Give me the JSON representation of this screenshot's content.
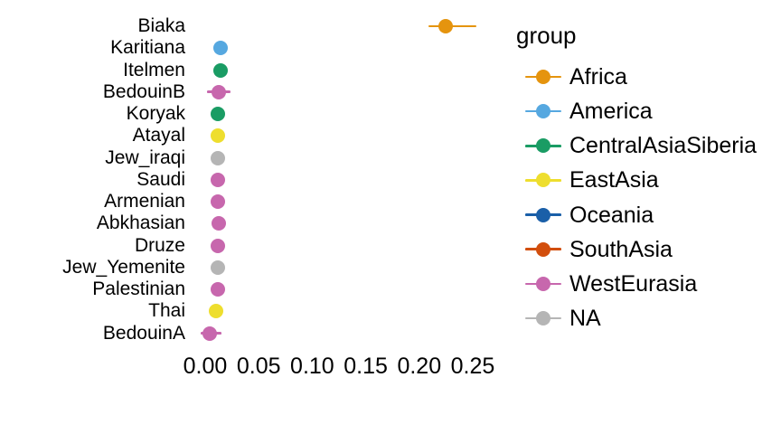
{
  "chart_data": {
    "type": "pointrange",
    "orientation": "horizontal",
    "title": "",
    "xlabel": "",
    "ylabel": "",
    "grid": false,
    "axis_lines": false,
    "xlim": [
      -0.01,
      0.285
    ],
    "x_ticks": [
      0.0,
      0.05,
      0.1,
      0.15,
      0.2,
      0.25
    ],
    "x_tick_labels": [
      "0.00",
      "0.05",
      "0.10",
      "0.15",
      "0.20",
      "0.25"
    ],
    "categories": [
      "Biaka",
      "Karitiana",
      "Itelmen",
      "BedouinB",
      "Koryak",
      "Atayal",
      "Jew_iraqi",
      "Saudi",
      "Armenian",
      "Abkhasian",
      "Druze",
      "Jew_Yemenite",
      "Palestinian",
      "Thai",
      "BedouinA"
    ],
    "points": [
      {
        "label": "Biaka",
        "group": "Africa",
        "value": 0.225,
        "ci_low": 0.209,
        "ci_high": 0.253
      },
      {
        "label": "Karitiana",
        "group": "America",
        "value": 0.014,
        "ci_low": 0.01,
        "ci_high": 0.018
      },
      {
        "label": "Itelmen",
        "group": "CentralAsiaSiberia",
        "value": 0.014,
        "ci_low": 0.01,
        "ci_high": 0.018
      },
      {
        "label": "BedouinB",
        "group": "WestEurasia",
        "value": 0.013,
        "ci_low": 0.002,
        "ci_high": 0.024
      },
      {
        "label": "Koryak",
        "group": "CentralAsiaSiberia",
        "value": 0.012,
        "ci_low": 0.008,
        "ci_high": 0.016
      },
      {
        "label": "Atayal",
        "group": "EastAsia",
        "value": 0.012,
        "ci_low": 0.008,
        "ci_high": 0.016
      },
      {
        "label": "Jew_iraqi",
        "group": "NA",
        "value": 0.012,
        "ci_low": 0.008,
        "ci_high": 0.016
      },
      {
        "label": "Saudi",
        "group": "WestEurasia",
        "value": 0.012,
        "ci_low": 0.008,
        "ci_high": 0.016
      },
      {
        "label": "Armenian",
        "group": "WestEurasia",
        "value": 0.012,
        "ci_low": 0.008,
        "ci_high": 0.016
      },
      {
        "label": "Abkhasian",
        "group": "WestEurasia",
        "value": 0.013,
        "ci_low": 0.009,
        "ci_high": 0.017
      },
      {
        "label": "Druze",
        "group": "WestEurasia",
        "value": 0.012,
        "ci_low": 0.008,
        "ci_high": 0.016
      },
      {
        "label": "Jew_Yemenite",
        "group": "NA",
        "value": 0.012,
        "ci_low": 0.008,
        "ci_high": 0.016
      },
      {
        "label": "Palestinian",
        "group": "WestEurasia",
        "value": 0.012,
        "ci_low": 0.008,
        "ci_high": 0.016
      },
      {
        "label": "Thai",
        "group": "EastAsia",
        "value": 0.01,
        "ci_low": 0.006,
        "ci_high": 0.014
      },
      {
        "label": "BedouinA",
        "group": "WestEurasia",
        "value": 0.004,
        "ci_low": -0.004,
        "ci_high": 0.015
      }
    ],
    "palette": {
      "Africa": "#E5940E",
      "America": "#56A8E0",
      "CentralAsiaSiberia": "#1A9C64",
      "EastAsia": "#EEDE2E",
      "Oceania": "#1A5FA8",
      "SouthAsia": "#D24E0D",
      "WestEurasia": "#C767AD",
      "NA": "#B5B5B5"
    },
    "legend": {
      "title": "group",
      "position": "right",
      "entries": [
        {
          "label": "Africa"
        },
        {
          "label": "America"
        },
        {
          "label": "CentralAsiaSiberia"
        },
        {
          "label": "EastAsia"
        },
        {
          "label": "Oceania"
        },
        {
          "label": "SouthAsia"
        },
        {
          "label": "WestEurasia"
        },
        {
          "label": "NA"
        }
      ]
    }
  }
}
